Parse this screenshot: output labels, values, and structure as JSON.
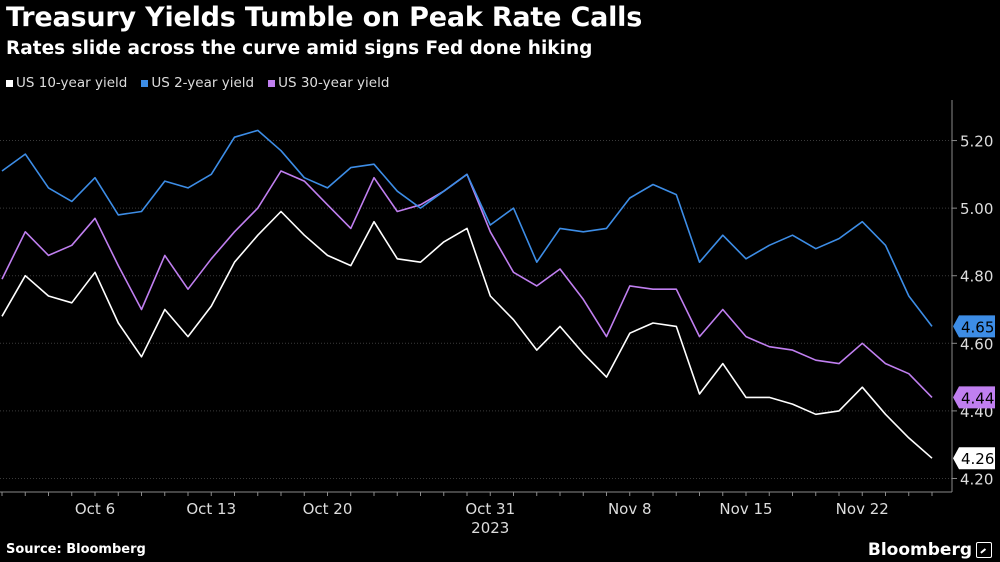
{
  "title": "Treasury Yields Tumble on Peak Rate Calls",
  "subtitle": "Rates slide across the curve amid signs Fed done hiking",
  "source": "Source: Bloomberg",
  "brand": "Bloomberg",
  "colors": {
    "background": "#000000",
    "ten_year": "#ffffff",
    "two_year": "#3d8de6",
    "thirty_year": "#c07ff0",
    "grid": "#3a3a3a",
    "axis": "#8a8a8a"
  },
  "chart_data": {
    "type": "line",
    "title": "Treasury Yields Tumble on Peak Rate Calls",
    "xlabel": "2023",
    "ylabel": "",
    "ylim": [
      4.16,
      5.32
    ],
    "yticks": [
      4.2,
      4.4,
      4.6,
      4.8,
      5.0,
      5.2
    ],
    "ytick_labels": [
      "4.20",
      "4.40",
      "4.60",
      "4.80",
      "5.00",
      "5.20"
    ],
    "x": [
      "Oct 2",
      "Oct 3",
      "Oct 4",
      "Oct 5",
      "Oct 6",
      "Oct 9",
      "Oct 10",
      "Oct 11",
      "Oct 12",
      "Oct 13",
      "Oct 16",
      "Oct 17",
      "Oct 18",
      "Oct 19",
      "Oct 20",
      "Oct 23",
      "Oct 24",
      "Oct 25",
      "Oct 26",
      "Oct 27",
      "Oct 30",
      "Oct 31",
      "Nov 1",
      "Nov 2",
      "Nov 3",
      "Nov 6",
      "Nov 7",
      "Nov 8",
      "Nov 9",
      "Nov 10",
      "Nov 13",
      "Nov 14",
      "Nov 15",
      "Nov 16",
      "Nov 17",
      "Nov 20",
      "Nov 21",
      "Nov 22",
      "Nov 24",
      "Nov 27",
      "Nov 28"
    ],
    "xticks": [
      "Oct 6",
      "Oct 13",
      "Oct 20",
      "Oct 31",
      "Nov 8",
      "Nov 15",
      "Nov 22"
    ],
    "xtick_labels": [
      "Oct 6",
      "Oct 13",
      "Oct 20",
      "Oct 31",
      "Nov 8",
      "Nov 15",
      "Nov 22"
    ],
    "legend": "top-left",
    "series": [
      {
        "name": "US 10-year yield",
        "color": "#ffffff",
        "last_label": "4.26",
        "values": [
          4.68,
          4.8,
          4.74,
          4.72,
          4.81,
          4.66,
          4.56,
          4.7,
          4.62,
          4.71,
          4.84,
          4.92,
          4.99,
          4.92,
          4.86,
          4.83,
          4.96,
          4.85,
          4.84,
          4.9,
          4.94,
          4.74,
          4.67,
          4.58,
          4.65,
          4.57,
          4.5,
          4.63,
          4.66,
          4.65,
          4.45,
          4.54,
          4.44,
          4.44,
          4.42,
          4.39,
          4.4,
          4.47,
          4.39,
          4.32,
          4.26
        ]
      },
      {
        "name": "US 2-year yield",
        "color": "#3d8de6",
        "last_label": "4.65",
        "values": [
          5.11,
          5.16,
          5.06,
          5.02,
          5.09,
          4.98,
          4.99,
          5.08,
          5.06,
          5.1,
          5.21,
          5.23,
          5.17,
          5.09,
          5.06,
          5.12,
          5.13,
          5.05,
          5.0,
          5.05,
          5.1,
          4.95,
          5.0,
          4.84,
          4.94,
          4.93,
          4.94,
          5.03,
          5.07,
          5.04,
          4.84,
          4.92,
          4.85,
          4.89,
          4.92,
          4.88,
          4.91,
          4.96,
          4.89,
          4.74,
          4.65
        ]
      },
      {
        "name": "US 30-year yield",
        "color": "#c07ff0",
        "last_label": "4.44",
        "values": [
          4.79,
          4.93,
          4.86,
          4.89,
          4.97,
          4.83,
          4.7,
          4.86,
          4.76,
          4.85,
          4.93,
          5.0,
          5.11,
          5.08,
          5.01,
          4.94,
          5.09,
          4.99,
          5.01,
          5.05,
          5.1,
          4.93,
          4.81,
          4.77,
          4.82,
          4.73,
          4.62,
          4.77,
          4.76,
          4.76,
          4.62,
          4.7,
          4.62,
          4.59,
          4.58,
          4.55,
          4.54,
          4.6,
          4.54,
          4.51,
          4.44
        ]
      }
    ]
  }
}
